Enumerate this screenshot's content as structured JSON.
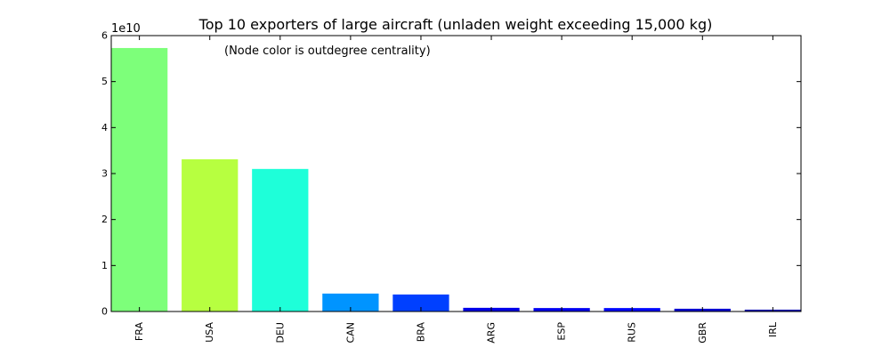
{
  "chart_data": {
    "type": "bar",
    "title": "Top 10 exporters of large aircraft (unladen weight exceeding 15,000 kg)",
    "annotation": "(Node color is outdegree centrality)",
    "xlabel": "",
    "ylabel": "",
    "y_offset_label": "1e10",
    "categories": [
      "FRA",
      "USA",
      "DEU",
      "CAN",
      "BRA",
      "ARG",
      "ESP",
      "RUS",
      "GBR",
      "IRL"
    ],
    "values": [
      57300000000,
      33100000000,
      31000000000,
      3900000000,
      3700000000,
      800000000,
      750000000,
      750000000,
      600000000,
      400000000
    ],
    "bar_colors": [
      "#7dff7a",
      "#b7ff40",
      "#1effd9",
      "#0094ff",
      "#0040ff",
      "#0000e8",
      "#0000f1",
      "#0008ff",
      "#0000d0",
      "#0000ad"
    ],
    "ylim": [
      0,
      60000000000
    ],
    "yticks": [
      0,
      1,
      2,
      3,
      4,
      5,
      6
    ],
    "y_tick_scale": 10000000000,
    "grid": false,
    "legend": "none"
  }
}
